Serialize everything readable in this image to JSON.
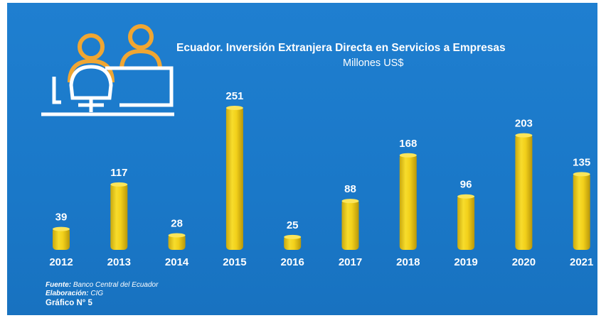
{
  "colors": {
    "background": "#1a78c8",
    "bar": "#f2d01a",
    "icon_person": "#f0a632",
    "icon_outline": "#ffffff",
    "text": "#ffffff"
  },
  "icon": "office-workers-desk-icon",
  "chart_data": {
    "type": "bar",
    "title": "Ecuador. Inversión Extranjera Directa en Servicios a Empresas",
    "subtitle": "Millones US$",
    "categories": [
      "2012",
      "2013",
      "2014",
      "2015",
      "2016",
      "2017",
      "2018",
      "2019",
      "2020",
      "2021"
    ],
    "values": [
      39,
      117,
      28,
      251,
      25,
      88,
      168,
      96,
      203,
      135
    ],
    "data_labels": [
      "39",
      "117",
      "28",
      "251",
      "25",
      "88",
      "168",
      "96",
      "203",
      "135"
    ],
    "ylim": [
      0,
      251
    ],
    "grid": false,
    "legend": "none"
  },
  "footer": {
    "source_label": "Fuente:",
    "source_value": "Banco Central del Ecuador",
    "elaboration_label": "Elaboración:",
    "elaboration_value": "CIG",
    "figure_label": "Gráfico N° 5"
  }
}
